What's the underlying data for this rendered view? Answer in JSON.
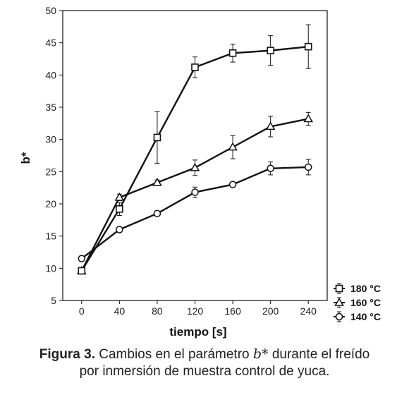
{
  "chart_data": {
    "type": "line",
    "xlabel": "tiempo [s]",
    "ylabel": "b*",
    "x": [
      0,
      40,
      80,
      120,
      160,
      200,
      240
    ],
    "xlim": [
      -20,
      260
    ],
    "ylim": [
      5,
      50
    ],
    "xticks": [
      0,
      40,
      80,
      120,
      160,
      200,
      240
    ],
    "yticks": [
      5,
      10,
      15,
      20,
      25,
      30,
      35,
      40,
      45,
      50
    ],
    "grid": false,
    "legend_position": "bottom-right outside",
    "series": [
      {
        "name": "180 °C",
        "marker": "square",
        "values": [
          9.6,
          19.2,
          30.3,
          41.2,
          43.4,
          43.8,
          44.4
        ],
        "error": [
          0.4,
          1.0,
          4.0,
          1.6,
          1.4,
          2.3,
          3.4
        ]
      },
      {
        "name": "160 °C",
        "marker": "triangle",
        "values": [
          9.6,
          21.0,
          23.3,
          25.6,
          28.8,
          32.0,
          33.2
        ],
        "error": [
          0.3,
          0.5,
          0.4,
          1.2,
          1.8,
          1.6,
          1.0
        ]
      },
      {
        "name": "140 °C",
        "marker": "circle",
        "values": [
          11.5,
          16.0,
          18.5,
          21.8,
          23.0,
          25.5,
          25.7
        ],
        "error": [
          0.3,
          0.4,
          0.4,
          0.8,
          0.4,
          1.0,
          1.2
        ]
      }
    ]
  },
  "caption": {
    "label": "Figura 3.",
    "text_before": "Cambios en el parámetro",
    "symbol": "b*",
    "text_after": "durante el freído",
    "line2": "por inmersión de muestra control de yuca."
  }
}
